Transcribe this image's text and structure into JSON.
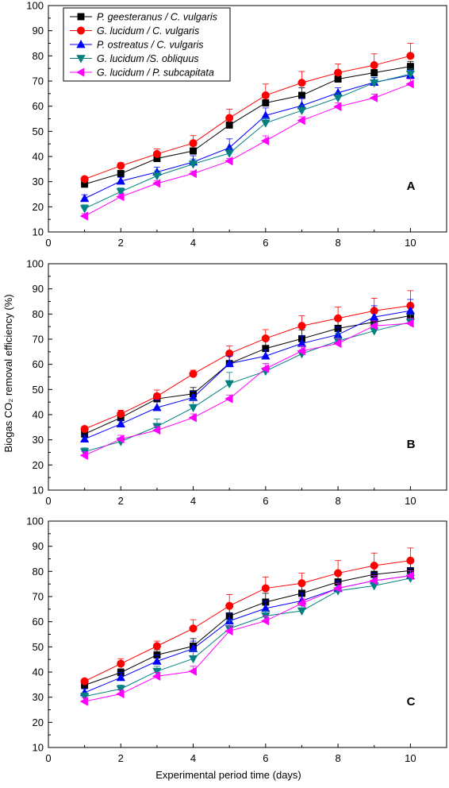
{
  "chart_data": {
    "type": "line",
    "xlabel": "Experimental period time (days)",
    "ylabel": "Biogas CO₂ removal efficiency (%)",
    "xlim": [
      0,
      11
    ],
    "ylim": [
      10,
      100
    ],
    "x_ticks": [
      0,
      2,
      4,
      6,
      8,
      10
    ],
    "y_ticks": [
      10,
      20,
      30,
      40,
      50,
      60,
      70,
      80,
      90,
      100
    ],
    "legend_position": "top-left",
    "series_styles": [
      {
        "name": "P. geesteranus / C. vulgaris",
        "color": "#000000",
        "marker": "square"
      },
      {
        "name": "G. lucidum / C. vulgaris",
        "color": "#ff0000",
        "marker": "circle"
      },
      {
        "name": "P. ostreatus / C. vulgaris",
        "color": "#0000ff",
        "marker": "triangle-up"
      },
      {
        "name": "G. lucidum /S. obliquus",
        "color": "#008080",
        "marker": "triangle-down"
      },
      {
        "name": "G. lucidum / P. subcapitata",
        "color": "#ff00ff",
        "marker": "triangle-left"
      }
    ],
    "panels": [
      {
        "label": "A",
        "x": [
          1,
          2,
          3,
          4,
          5,
          6,
          7,
          8,
          9,
          10
        ],
        "series": [
          {
            "values": [
              29,
              33.2,
              39.2,
              42.2,
              52.5,
              61.3,
              64.3,
              70.8,
              73.3,
              75.8
            ],
            "errors": [
              1,
              1,
              1.5,
              2,
              2,
              2,
              3,
              2,
              2,
              2
            ]
          },
          {
            "values": [
              31,
              36.3,
              41,
              45.3,
              55.3,
              64.3,
              69.3,
              73.3,
              76.3,
              80
            ],
            "errors": [
              1,
              1.2,
              2,
              3,
              3.5,
              4.5,
              4.5,
              3.5,
              4.5,
              5
            ]
          },
          {
            "values": [
              23.3,
              30.2,
              33.8,
              37.8,
              43.5,
              56.3,
              60.2,
              65.3,
              69.5,
              72.3
            ],
            "errors": [
              1.5,
              1.5,
              2,
              2.5,
              3.5,
              3,
              3,
              2,
              2,
              2
            ]
          },
          {
            "values": [
              19.3,
              26,
              32.3,
              37,
              41.3,
              53.3,
              58.3,
              63.3,
              69.3,
              72.8
            ],
            "errors": [
              1.5,
              1.5,
              2,
              2,
              2,
              2,
              2,
              2,
              2,
              2
            ]
          },
          {
            "values": [
              16.3,
              24,
              29.3,
              33.2,
              38.2,
              46.2,
              54.3,
              59.8,
              63.3,
              68.8
            ],
            "errors": [
              1,
              1,
              1,
              1,
              1,
              2,
              1.5,
              1.5,
              1.5,
              2
            ]
          }
        ]
      },
      {
        "label": "B",
        "x": [
          1,
          2,
          3,
          4,
          5,
          6,
          7,
          8,
          9,
          10
        ],
        "series": [
          {
            "values": [
              32.3,
              38.8,
              46.3,
              48.3,
              60.3,
              66.3,
              70.2,
              74.3,
              76.8,
              79.3
            ],
            "errors": [
              1,
              1,
              2,
              2.5,
              3,
              3.5,
              3.5,
              3,
              3.5,
              3.5
            ]
          },
          {
            "values": [
              34.3,
              40.3,
              47.3,
              56.2,
              64.3,
              70.3,
              75.3,
              78.3,
              81.3,
              83.3
            ],
            "errors": [
              1,
              1.5,
              2.5,
              1.5,
              3,
              3.5,
              4,
              4.5,
              5,
              6
            ]
          },
          {
            "values": [
              30.3,
              36.3,
              42.8,
              46.8,
              60.3,
              63.3,
              68.3,
              71.8,
              78.8,
              81.3
            ],
            "errors": [
              1.5,
              1.5,
              3,
              2.5,
              3,
              2.5,
              3,
              3,
              4.5,
              4.5
            ]
          },
          {
            "values": [
              25.3,
              29.3,
              35.3,
              42.8,
              52.3,
              57.3,
              64.2,
              69.3,
              73.3,
              76.8
            ],
            "errors": [
              1.5,
              1.5,
              3,
              3,
              4.5,
              3,
              3,
              3,
              3,
              3
            ]
          },
          {
            "values": [
              23.8,
              30.3,
              33.8,
              38.8,
              46.3,
              58.3,
              65.3,
              68.3,
              75.3,
              76.3
            ],
            "errors": [
              1.5,
              1.5,
              1.5,
              1.5,
              1.5,
              2,
              2,
              2,
              2,
              2
            ]
          }
        ]
      },
      {
        "label": "C",
        "x": [
          1,
          2,
          3,
          4,
          5,
          6,
          7,
          8,
          9,
          10
        ],
        "series": [
          {
            "values": [
              34.8,
              39.8,
              46.8,
              50.3,
              62.3,
              67.8,
              71.3,
              75.8,
              78.8,
              80.3
            ],
            "errors": [
              1.5,
              1.5,
              2,
              3,
              3.5,
              3.5,
              3.5,
              4,
              4,
              4.5
            ]
          },
          {
            "values": [
              36.3,
              43.3,
              50.3,
              57.3,
              66.3,
              73.3,
              75.3,
              79.3,
              82.3,
              84.3
            ],
            "errors": [
              1,
              2,
              2,
              3.5,
              4.5,
              4.5,
              4,
              5,
              5,
              5
            ]
          },
          {
            "values": [
              31.8,
              37.8,
              44.3,
              49.3,
              60.3,
              65.3,
              68.3,
              73.3,
              76.3,
              78.3
            ],
            "errors": [
              1.5,
              2,
              2.5,
              3,
              3,
              3,
              3,
              3,
              3,
              3
            ]
          },
          {
            "values": [
              30.3,
              33.3,
              40.3,
              45.3,
              57.3,
              62.3,
              64.3,
              72.3,
              74.3,
              77.3
            ],
            "errors": [
              1.5,
              1.5,
              2,
              3,
              3,
              2,
              2,
              2,
              2,
              2
            ]
          },
          {
            "values": [
              28.3,
              31.3,
              38.3,
              40.3,
              56.3,
              60.3,
              67.3,
              73.3,
              76.3,
              78.3
            ],
            "errors": [
              1.5,
              1.5,
              1.5,
              2,
              2,
              2,
              2,
              2,
              2,
              2
            ]
          }
        ]
      }
    ]
  }
}
